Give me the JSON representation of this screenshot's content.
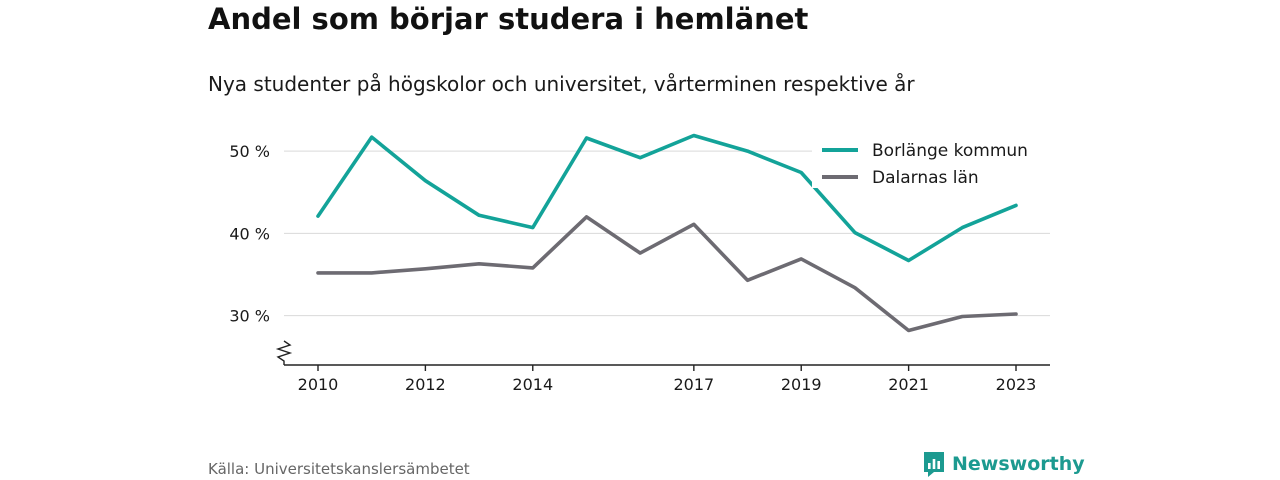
{
  "title": "Andel som börjar studera i hemlänet",
  "subtitle": "Nya studenter på högskolor och universitet, vårterminen respektive år",
  "source": "Källa: Universitetskanslersämbetet",
  "brand": "Newsworthy",
  "colors": {
    "borlange": "#13a399",
    "dalarna": "#6d6b72",
    "grid": "#d9d9d9",
    "brand": "#1c9a90"
  },
  "chart_data": {
    "type": "line",
    "x": [
      2010,
      2011,
      2012,
      2013,
      2014,
      2015,
      2016,
      2017,
      2018,
      2019,
      2020,
      2021,
      2022,
      2023
    ],
    "x_ticks": [
      2010,
      2012,
      2014,
      2017,
      2019,
      2021,
      2023
    ],
    "y_ticks": [
      30,
      40,
      50
    ],
    "y_tick_labels": [
      "30 %",
      "40 %",
      "50 %"
    ],
    "ylim": [
      24,
      55
    ],
    "grid": true,
    "legend_position": "top-right",
    "series": [
      {
        "name": "Borlänge kommun",
        "values": [
          42.1,
          51.7,
          46.4,
          42.2,
          40.7,
          51.6,
          49.2,
          51.9,
          50.0,
          47.4,
          40.1,
          36.7,
          40.7,
          43.4
        ]
      },
      {
        "name": "Dalarnas län",
        "values": [
          35.2,
          35.2,
          35.7,
          36.3,
          35.8,
          42.0,
          37.6,
          41.1,
          34.3,
          36.9,
          33.4,
          28.2,
          29.9,
          30.2
        ]
      }
    ]
  }
}
